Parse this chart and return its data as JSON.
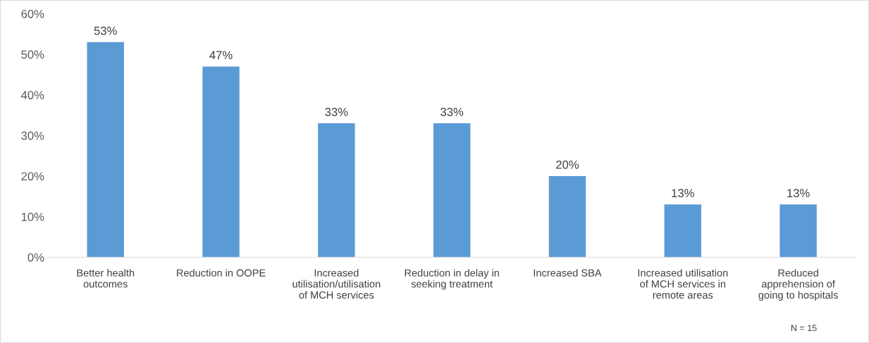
{
  "chart_data": {
    "type": "bar",
    "categories": [
      "Better health\noutcomes",
      "Reduction in OOPE",
      "Increased\nutilisation/utilisation\nof MCH services",
      "Reduction in delay in\nseeking treatment",
      "Increased SBA",
      "Increased utilisation\nof MCH services in\nremote areas",
      "Reduced\napprehension of\ngoing to hospitals"
    ],
    "values": [
      53,
      47,
      33,
      33,
      20,
      13,
      13
    ],
    "color": "#5b9bd5",
    "value_labels": [
      "53%",
      "47%",
      "33%",
      "33%",
      "20%",
      "13%",
      "13%"
    ],
    "ylim": [
      0,
      60
    ],
    "yticks": [
      {
        "value": 0,
        "label": "0%"
      },
      {
        "value": 10,
        "label": "10%"
      },
      {
        "value": 20,
        "label": "20%"
      },
      {
        "value": 30,
        "label": "30%"
      },
      {
        "value": 40,
        "label": "40%"
      },
      {
        "value": 50,
        "label": "50%"
      },
      {
        "value": 60,
        "label": "60%"
      }
    ],
    "grid": false,
    "legend": false,
    "annotations": [
      "N = 15"
    ]
  }
}
